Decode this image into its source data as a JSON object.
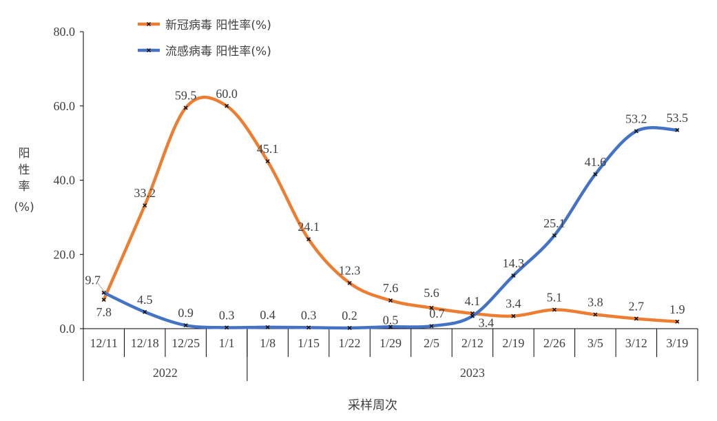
{
  "chart_data": {
    "type": "line",
    "title": "",
    "xlabel": "采样周次",
    "ylabel": "阳性率(%)",
    "ylim": [
      0,
      80
    ],
    "yticks": [
      "0.0",
      "20.0",
      "40.0",
      "60.0",
      "80.0"
    ],
    "categories": [
      "12/11",
      "12/18",
      "12/25",
      "1/1",
      "1/8",
      "1/15",
      "1/22",
      "1/29",
      "2/5",
      "2/12",
      "2/19",
      "2/26",
      "3/5",
      "3/12",
      "3/19"
    ],
    "year_groups": [
      {
        "label": "2022",
        "span": 4
      },
      {
        "label": "2023",
        "span": 11
      }
    ],
    "legend_position": "top",
    "grid": false,
    "series": [
      {
        "name": "新冠病毒 阳性率(%)",
        "color": "#ED7D31",
        "values": [
          7.8,
          33.2,
          59.5,
          60.0,
          45.1,
          24.1,
          12.3,
          7.6,
          5.6,
          4.1,
          3.4,
          5.1,
          3.8,
          2.7,
          1.9
        ],
        "labels": [
          "7.8",
          "33.2",
          "59.5",
          "60.0",
          "45.1",
          "24.1",
          "12.3",
          "7.6",
          "5.6",
          "4.1",
          "3.4",
          "5.1",
          "3.8",
          "2.7",
          "1.9"
        ]
      },
      {
        "name": "流感病毒 阳性率(%)",
        "color": "#4472C4",
        "values": [
          9.7,
          4.5,
          0.9,
          0.3,
          0.4,
          0.3,
          0.2,
          0.5,
          0.7,
          3.4,
          14.3,
          25.1,
          41.6,
          53.2,
          53.5
        ],
        "labels": [
          "9.7",
          "4.5",
          "0.9",
          "0.3",
          "0.4",
          "0.3",
          "0.2",
          "0.5",
          "0.7",
          "3.4",
          "14.3",
          "25.1",
          "41.6",
          "53.2",
          "53.5"
        ]
      }
    ]
  }
}
